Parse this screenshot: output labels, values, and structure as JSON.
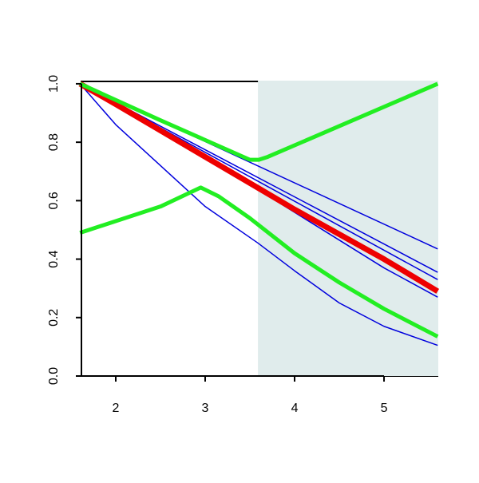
{
  "chart_data": {
    "type": "line",
    "xlim": [
      1.616,
      5.598
    ],
    "ylim": [
      0,
      1.008
    ],
    "xticks": [
      2,
      3,
      4,
      5
    ],
    "yticks": [
      {
        "value": 0,
        "label": "0.0"
      },
      0.2,
      0.4,
      0.6,
      0.8,
      {
        "value": 1,
        "label": "1.0"
      }
    ],
    "shade": {
      "x": [
        3.59,
        5.598
      ],
      "color": "#e0ecec"
    },
    "series": [
      {
        "color": "#0000dd",
        "width": 1.5,
        "x": [
          1.6,
          2,
          2.5,
          3,
          3.59,
          4,
          4.5,
          5,
          5.6
        ],
        "values": [
          1,
          0.86,
          0.72,
          0.58,
          0.455,
          0.36,
          0.25,
          0.17,
          0.105
        ]
      },
      {
        "color": "#0000dd",
        "width": 1.5,
        "x": [
          1.6,
          3,
          4,
          5,
          5.6
        ],
        "values": [
          1,
          0.75,
          0.56,
          0.37,
          0.27
        ]
      },
      {
        "color": "#0000dd",
        "width": 1.5,
        "x": [
          1.6,
          5.6
        ],
        "values": [
          1,
          0.33
        ]
      },
      {
        "color": "#0000dd",
        "width": 1.5,
        "x": [
          1.6,
          5.6
        ],
        "values": [
          1,
          0.355
        ]
      },
      {
        "color": "#0000dd",
        "width": 1.5,
        "x": [
          1.6,
          5.6
        ],
        "values": [
          1,
          0.435
        ]
      },
      {
        "color": "#ee0000",
        "width": 7,
        "x": [
          1.6,
          2,
          2.5,
          3,
          3.5,
          4,
          4.5,
          5,
          5.6
        ],
        "values": [
          1,
          0.93,
          0.84,
          0.75,
          0.66,
          0.57,
          0.485,
          0.4,
          0.29
        ]
      },
      {
        "color": "#22ee22",
        "width": 5,
        "x": [
          1.6,
          2.5,
          3.5,
          3.6,
          3.7,
          5.6
        ],
        "values": [
          1,
          0.875,
          0.74,
          0.74,
          0.75,
          1
        ]
      },
      {
        "color": "#22ee22",
        "width": 5,
        "x": [
          1.6,
          2.5,
          2.95,
          3.05,
          3.15,
          3.5,
          4,
          4.5,
          5,
          5.6
        ],
        "values": [
          0.49,
          0.58,
          0.645,
          0.63,
          0.615,
          0.54,
          0.42,
          0.32,
          0.23,
          0.135
        ]
      }
    ]
  }
}
